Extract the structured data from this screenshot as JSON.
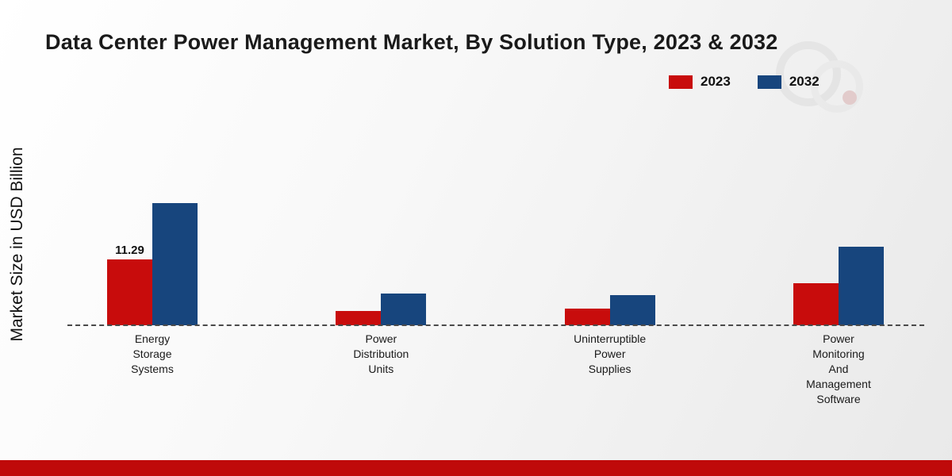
{
  "title": "Data Center Power Management Market, By Solution Type, 2023 & 2032",
  "y_axis_label": "Market Size in USD Billion",
  "legend": {
    "items": [
      {
        "label": "2023",
        "color": "#c80c0c"
      },
      {
        "label": "2032",
        "color": "#17457d"
      }
    ],
    "position": "top-right"
  },
  "colors": {
    "series_2023": "#c80c0c",
    "series_2032": "#17457d",
    "footer_accent": "#bf0a0a",
    "axis_line": "#4a4a4a"
  },
  "chart_data": {
    "type": "bar",
    "title": "Data Center Power Management Market, By Solution Type, 2023 & 2032",
    "xlabel": "",
    "ylabel": "Market Size in USD Billion",
    "ylim": [
      0,
      25
    ],
    "grid": false,
    "legend_position": "top-right",
    "baseline_style": "dashed",
    "categories": [
      "Energy Storage Systems",
      "Power Distribution Units",
      "Uninterruptible Power Supplies",
      "Power Monitoring And Management Software"
    ],
    "category_label_lines": [
      [
        "Energy",
        "Storage",
        "Systems"
      ],
      [
        "Power",
        "Distribution",
        "Units"
      ],
      [
        "Uninterruptible",
        "Power",
        "Supplies"
      ],
      [
        "Power",
        "Monitoring",
        "And",
        "Management",
        "Software"
      ]
    ],
    "series": [
      {
        "name": "2023",
        "color": "#c80c0c",
        "values": [
          11.29,
          2.4,
          2.9,
          7.2
        ],
        "data_labels": [
          "11.29",
          null,
          null,
          null
        ]
      },
      {
        "name": "2032",
        "color": "#17457d",
        "values": [
          21.0,
          5.4,
          5.2,
          13.5
        ],
        "data_labels": [
          null,
          null,
          null,
          null
        ]
      }
    ]
  },
  "footer": {
    "accent_bar": ""
  }
}
